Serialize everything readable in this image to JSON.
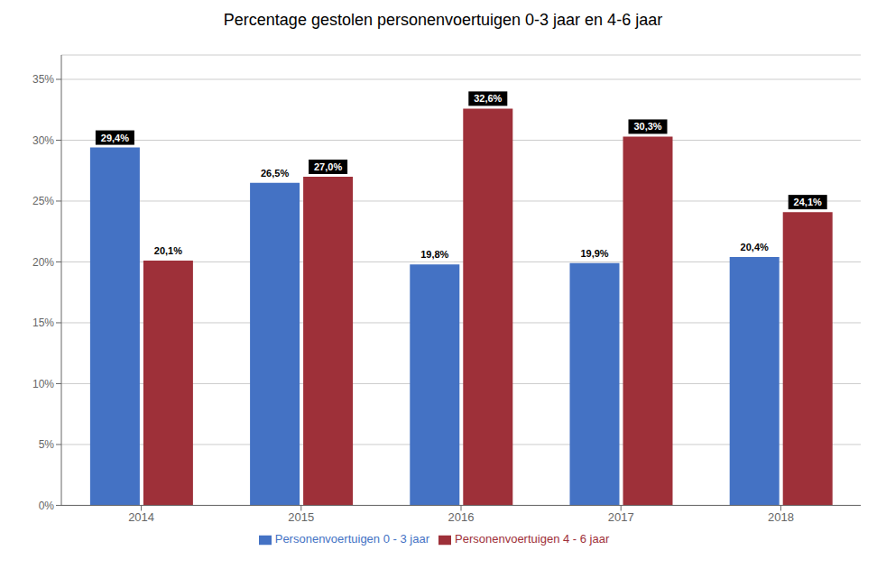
{
  "chart_data": {
    "type": "bar",
    "title": "Percentage gestolen personenvoertuigen 0-3 jaar en 4-6 jaar",
    "categories": [
      "2014",
      "2015",
      "2016",
      "2017",
      "2018"
    ],
    "series": [
      {
        "name": "Personenvoertuigen 0 - 3 jaar",
        "color": "#4472C4",
        "values": [
          29.4,
          26.5,
          19.8,
          19.9,
          20.4
        ],
        "value_labels": [
          "29,4%",
          "26,5%",
          "19,8%",
          "19,9%",
          "20,4%"
        ]
      },
      {
        "name": "Personenvoertuigen 4 - 6 jaar",
        "color": "#9E3039",
        "values": [
          20.1,
          27.0,
          32.6,
          30.3,
          24.1
        ],
        "value_labels": [
          "20,1%",
          "27,0%",
          "32,6%",
          "30,3%",
          "24,1%"
        ]
      }
    ],
    "ylim": [
      0,
      37
    ],
    "yticks": [
      {
        "value": 0,
        "label": "0%"
      },
      {
        "value": 5,
        "label": "5%"
      },
      {
        "value": 10,
        "label": "10%"
      },
      {
        "value": 15,
        "label": "15%"
      },
      {
        "value": 20,
        "label": "20%"
      },
      {
        "value": 25,
        "label": "25%"
      },
      {
        "value": 30,
        "label": "30%"
      },
      {
        "value": 35,
        "label": "35%"
      }
    ],
    "grid": true,
    "legend": "bottom",
    "data_labels": true
  }
}
